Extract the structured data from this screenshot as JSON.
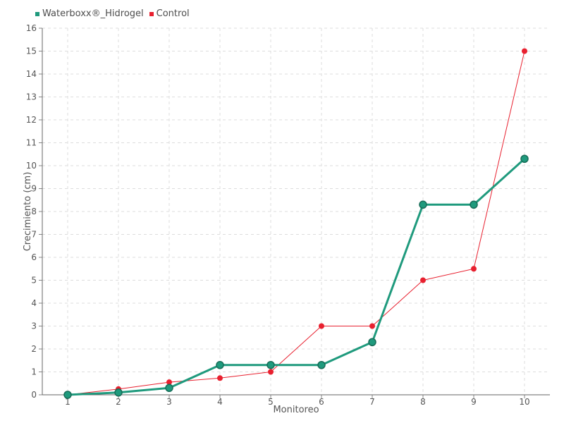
{
  "chart_data": {
    "type": "line",
    "xlabel": "Monitoreo",
    "ylabel": "Crecimiento (cm)",
    "categories": [
      "1",
      "2",
      "3",
      "4",
      "5",
      "6",
      "7",
      "8",
      "9",
      "10"
    ],
    "ylim": [
      0,
      16
    ],
    "yticks": [
      "0",
      "1",
      "2",
      "3",
      "4",
      "5",
      "6",
      "7",
      "8",
      "9",
      "10",
      "11",
      "12",
      "13",
      "14",
      "15",
      "16"
    ],
    "grid": true,
    "legend_position": "top-left",
    "series": [
      {
        "name": "Waterboxx®_Hidrogel",
        "color": "#1f9a7d",
        "values": [
          0,
          0.1,
          0.3,
          1.3,
          1.3,
          1.3,
          2.3,
          8.3,
          8.3,
          10.3
        ]
      },
      {
        "name": "Control",
        "color": "#e8202f",
        "values": [
          0,
          0.25,
          0.55,
          0.73,
          1.0,
          3.0,
          3.0,
          5.0,
          5.5,
          15.0
        ]
      }
    ]
  }
}
